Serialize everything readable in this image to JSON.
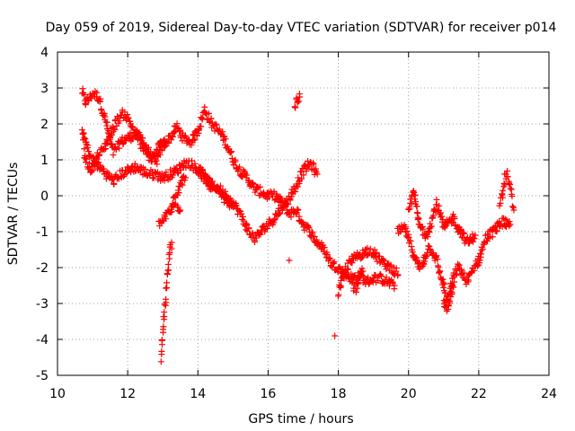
{
  "chart_data": {
    "type": "scatter",
    "title": "Day 059 of 2019, Sidereal Day-to-day VTEC variation (SDTVAR) for receiver p014",
    "xlabel": "GPS time / hours",
    "ylabel": "SDTVAR / TECUs",
    "xlim": [
      10,
      24
    ],
    "ylim": [
      -5,
      4
    ],
    "xticks": [
      "10",
      "12",
      "14",
      "16",
      "18",
      "20",
      "22",
      "24"
    ],
    "yticks": [
      "-5",
      "-4",
      "-3",
      "-2",
      "-1",
      "0",
      "1",
      "2",
      "3",
      "4"
    ],
    "grid": true,
    "marker": "+",
    "color": "#ff0000",
    "series": [
      {
        "name": "SDTVAR",
        "tracks": [
          [
            [
              10.7,
              2.9
            ],
            [
              10.8,
              2.6
            ],
            [
              10.9,
              2.7
            ],
            [
              11.0,
              2.85
            ],
            [
              11.1,
              2.8
            ],
            [
              11.2,
              2.7
            ],
            [
              11.3,
              2.3
            ],
            [
              11.4,
              2.0
            ],
            [
              11.5,
              1.5
            ],
            [
              11.6,
              1.2
            ],
            [
              11.8,
              1.5
            ],
            [
              12.0,
              1.6
            ],
            [
              12.2,
              1.7
            ],
            [
              12.4,
              1.6
            ],
            [
              12.6,
              1.2
            ],
            [
              12.8,
              0.9
            ],
            [
              13.0,
              1.4
            ],
            [
              13.2,
              1.6
            ],
            [
              13.4,
              1.9
            ],
            [
              13.6,
              1.6
            ],
            [
              13.8,
              1.5
            ],
            [
              14.0,
              1.8
            ],
            [
              14.2,
              2.4
            ],
            [
              14.4,
              2.0
            ],
            [
              14.6,
              1.8
            ],
            [
              14.8,
              1.5
            ],
            [
              15.0,
              1.0
            ],
            [
              15.2,
              0.7
            ],
            [
              15.4,
              0.5
            ],
            [
              15.6,
              0.2
            ],
            [
              15.8,
              0.1
            ],
            [
              16.0,
              0.0
            ],
            [
              16.2,
              0.0
            ],
            [
              16.4,
              -0.2
            ],
            [
              16.6,
              -0.5
            ],
            [
              16.8,
              -0.4
            ],
            [
              17.0,
              -0.8
            ],
            [
              17.2,
              -1.0
            ],
            [
              17.4,
              -1.3
            ],
            [
              17.6,
              -1.5
            ],
            [
              17.8,
              -1.9
            ],
            [
              18.0,
              -2.0
            ],
            [
              18.2,
              -2.2
            ],
            [
              18.4,
              -2.3
            ],
            [
              18.6,
              -2.2
            ],
            [
              18.8,
              -2.4
            ],
            [
              19.0,
              -2.3
            ],
            [
              19.2,
              -2.3
            ],
            [
              19.4,
              -2.4
            ],
            [
              19.6,
              -2.5
            ]
          ],
          [
            [
              10.7,
              1.8
            ],
            [
              10.8,
              1.5
            ],
            [
              10.9,
              1.2
            ],
            [
              11.0,
              1.0
            ],
            [
              11.2,
              0.8
            ],
            [
              11.4,
              0.6
            ],
            [
              11.6,
              0.4
            ],
            [
              11.8,
              0.6
            ],
            [
              12.0,
              0.7
            ],
            [
              12.2,
              0.8
            ],
            [
              12.4,
              0.7
            ],
            [
              12.6,
              0.6
            ],
            [
              12.8,
              0.6
            ],
            [
              13.0,
              0.5
            ],
            [
              13.4,
              0.7
            ],
            [
              13.6,
              0.9
            ],
            [
              13.8,
              0.9
            ],
            [
              14.0,
              0.7
            ],
            [
              14.2,
              0.5
            ],
            [
              14.4,
              0.3
            ],
            [
              14.6,
              0.2
            ],
            [
              14.8,
              0.0
            ],
            [
              15.0,
              -0.2
            ],
            [
              15.2,
              -0.5
            ],
            [
              15.4,
              -0.9
            ],
            [
              15.6,
              -1.2
            ],
            [
              15.8,
              -1.0
            ],
            [
              16.0,
              -0.8
            ],
            [
              16.2,
              -0.6
            ],
            [
              16.4,
              -0.3
            ],
            [
              16.6,
              -0.1
            ],
            [
              16.8,
              0.3
            ],
            [
              17.0,
              0.7
            ],
            [
              17.2,
              0.9
            ],
            [
              17.4,
              0.6
            ]
          ],
          [
            [
              10.75,
              1.2
            ],
            [
              10.85,
              0.9
            ],
            [
              10.95,
              0.7
            ],
            [
              11.05,
              0.9
            ],
            [
              11.15,
              1.1
            ],
            [
              11.3,
              1.3
            ],
            [
              11.5,
              1.7
            ],
            [
              11.7,
              2.1
            ],
            [
              11.9,
              2.3
            ],
            [
              12.1,
              2.0
            ],
            [
              12.3,
              1.6
            ],
            [
              12.5,
              1.2
            ],
            [
              12.7,
              1.0
            ],
            [
              12.9,
              1.4
            ],
            [
              13.1,
              1.5
            ]
          ],
          [
            [
              12.95,
              -4.5
            ],
            [
              13.0,
              -3.8
            ],
            [
              13.05,
              -3.2
            ],
            [
              13.1,
              -2.6
            ],
            [
              13.15,
              -2.1
            ],
            [
              13.2,
              -1.6
            ],
            [
              13.25,
              -1.3
            ]
          ],
          [
            [
              12.9,
              -0.8
            ],
            [
              13.0,
              -0.7
            ],
            [
              13.1,
              -0.55
            ],
            [
              13.2,
              -0.45
            ],
            [
              13.3,
              -0.3
            ],
            [
              13.4,
              -0.25
            ],
            [
              13.5,
              -0.4
            ]
          ],
          [
            [
              13.25,
              -0.2
            ],
            [
              13.35,
              0.0
            ],
            [
              13.45,
              0.2
            ],
            [
              13.55,
              0.4
            ],
            [
              13.65,
              0.5
            ]
          ],
          [
            [
              14.0,
              0.8
            ],
            [
              14.2,
              0.5
            ],
            [
              14.4,
              0.2
            ],
            [
              14.6,
              0.1
            ],
            [
              14.8,
              -0.1
            ],
            [
              15.0,
              -0.3
            ]
          ],
          [
            [
              16.75,
              2.5
            ],
            [
              16.8,
              2.6
            ],
            [
              16.85,
              2.7
            ],
            [
              16.9,
              2.75
            ]
          ],
          [
            [
              16.6,
              -1.8
            ]
          ],
          [
            [
              17.9,
              -3.9
            ]
          ],
          [
            [
              18.0,
              -2.7
            ],
            [
              18.1,
              -2.4
            ],
            [
              18.2,
              -2.1
            ],
            [
              18.3,
              -1.9
            ],
            [
              18.5,
              -1.7
            ],
            [
              18.7,
              -1.6
            ],
            [
              18.9,
              -1.5
            ],
            [
              19.1,
              -1.7
            ],
            [
              19.3,
              -1.9
            ],
            [
              19.5,
              -2.0
            ],
            [
              19.7,
              -2.2
            ]
          ],
          [
            [
              18.4,
              -2.5
            ],
            [
              18.5,
              -2.6
            ],
            [
              18.6,
              -2.3
            ],
            [
              18.7,
              -2.1
            ]
          ],
          [
            [
              19.7,
              -1.0
            ],
            [
              19.9,
              -0.9
            ],
            [
              20.0,
              -1.2
            ],
            [
              20.1,
              -1.5
            ],
            [
              20.2,
              -1.8
            ],
            [
              20.3,
              -2.0
            ],
            [
              20.4,
              -1.9
            ],
            [
              20.5,
              -1.6
            ],
            [
              20.6,
              -1.4
            ],
            [
              20.7,
              -1.6
            ],
            [
              20.8,
              -1.8
            ],
            [
              20.9,
              -2.2
            ],
            [
              21.0,
              -2.5
            ],
            [
              21.1,
              -2.9
            ],
            [
              21.2,
              -2.6
            ],
            [
              21.3,
              -2.2
            ],
            [
              21.4,
              -2.0
            ],
            [
              21.5,
              -2.1
            ],
            [
              21.6,
              -2.3
            ],
            [
              21.7,
              -2.4
            ],
            [
              21.8,
              -2.1
            ],
            [
              21.9,
              -1.9
            ],
            [
              22.0,
              -1.8
            ],
            [
              22.1,
              -1.5
            ],
            [
              22.2,
              -1.2
            ],
            [
              22.3,
              -1.1
            ],
            [
              22.4,
              -1.0
            ],
            [
              22.5,
              -0.9
            ],
            [
              22.6,
              -0.8
            ],
            [
              22.7,
              -0.7
            ],
            [
              22.8,
              -0.8
            ],
            [
              22.85,
              -0.9
            ],
            [
              22.9,
              -0.8
            ]
          ],
          [
            [
              20.0,
              -0.5
            ],
            [
              20.1,
              0.0
            ],
            [
              20.15,
              0.2
            ],
            [
              20.2,
              -0.2
            ],
            [
              20.3,
              -0.8
            ],
            [
              20.5,
              -1.1
            ],
            [
              20.7,
              -0.6
            ],
            [
              20.8,
              -0.2
            ],
            [
              20.9,
              -0.5
            ],
            [
              21.0,
              -0.9
            ],
            [
              21.1,
              -0.8
            ],
            [
              21.2,
              -0.7
            ],
            [
              21.3,
              -0.6
            ],
            [
              21.4,
              -0.9
            ],
            [
              21.5,
              -1.0
            ],
            [
              21.6,
              -1.2
            ],
            [
              21.7,
              -1.3
            ],
            [
              21.8,
              -1.2
            ],
            [
              21.9,
              -1.1
            ]
          ],
          [
            [
              22.6,
              -0.2
            ],
            [
              22.7,
              0.1
            ],
            [
              22.75,
              0.5
            ],
            [
              22.8,
              0.6
            ],
            [
              22.85,
              0.4
            ],
            [
              22.9,
              0.2
            ],
            [
              22.95,
              0.0
            ],
            [
              23.0,
              -0.4
            ]
          ],
          [
            [
              21.0,
              -3.0
            ],
            [
              21.1,
              -3.1
            ],
            [
              21.2,
              -2.8
            ],
            [
              21.3,
              -2.4
            ]
          ]
        ]
      }
    ]
  }
}
